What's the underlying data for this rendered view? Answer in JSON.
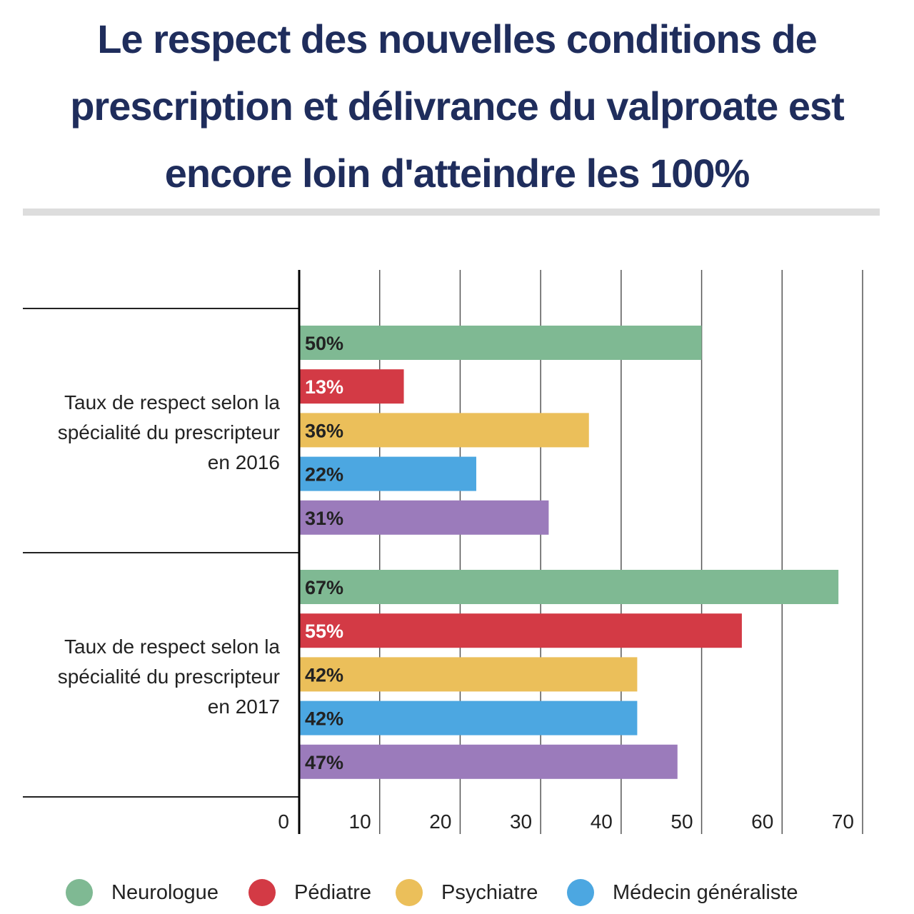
{
  "title": "Le respect des nouvelles conditions de prescription et délivrance du valproate est encore loin d'atteindre les 100%",
  "colors": {
    "Neurologue": "#7fb993",
    "Pédiatre": "#d33a45",
    "Psychiatre": "#ebbf5a",
    "Médecin généraliste": "#4ca7e1",
    "series5": "#9b7bbb"
  },
  "chart_data": {
    "type": "bar",
    "orientation": "horizontal",
    "categories": [
      "Taux de respect selon la spécialité du prescripteur en 2016",
      "Taux de respect selon la spécialité du prescripteur en 2017"
    ],
    "category_lines": [
      [
        "Taux de respect selon la",
        "spécialité du prescripteur",
        "en 2016"
      ],
      [
        "Taux de respect selon la",
        "spécialité du prescripteur",
        "en 2017"
      ]
    ],
    "series": [
      {
        "name": "Neurologue",
        "values": [
          50,
          67
        ],
        "labels": [
          "50%",
          "67%"
        ],
        "color": "#7fb993",
        "label_color": "#222222"
      },
      {
        "name": "Pédiatre",
        "values": [
          13,
          55
        ],
        "labels": [
          "13%",
          "55%"
        ],
        "color": "#d33a45",
        "label_color": "#ffffff"
      },
      {
        "name": "Psychiatre",
        "values": [
          36,
          42
        ],
        "labels": [
          "36%",
          "42%"
        ],
        "color": "#ebbf5a",
        "label_color": "#222222"
      },
      {
        "name": "Médecin généraliste",
        "values": [
          22,
          42
        ],
        "labels": [
          "22%",
          "42%"
        ],
        "color": "#4ca7e1",
        "label_color": "#222222"
      },
      {
        "values": [
          31,
          47
        ],
        "labels": [
          "31%",
          "47%"
        ],
        "color": "#9b7bbb",
        "label_color": "#222222"
      }
    ],
    "xlim": [
      0,
      70
    ],
    "xticks": [
      0,
      10,
      20,
      30,
      40,
      50,
      60,
      70
    ],
    "grid": true,
    "legend_position": "bottom"
  },
  "legend": [
    {
      "label": "Neurologue",
      "color": "#7fb993"
    },
    {
      "label": "Pédiatre",
      "color": "#d33a45"
    },
    {
      "label": "Psychiatre",
      "color": "#ebbf5a"
    },
    {
      "label": "Médecin généraliste",
      "color": "#4ca7e1"
    }
  ]
}
